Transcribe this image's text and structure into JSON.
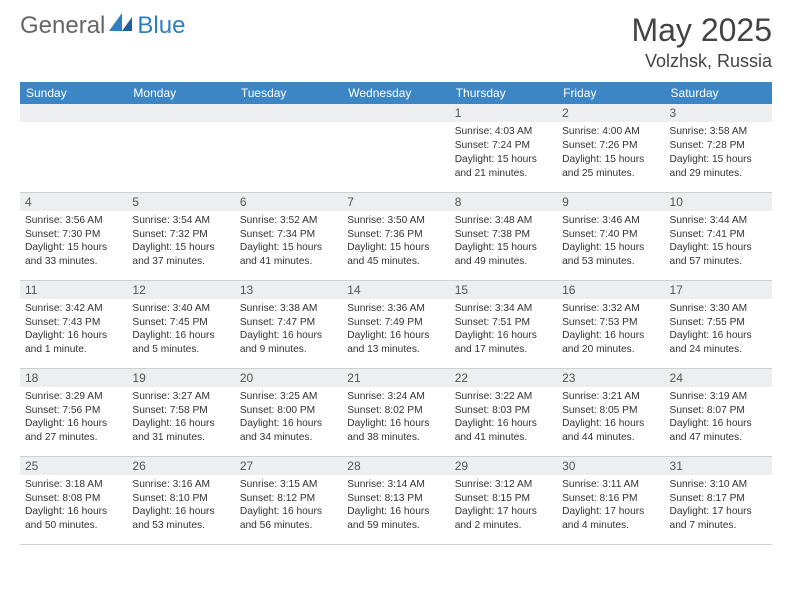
{
  "brand": {
    "part1": "General",
    "part2": "Blue"
  },
  "title": "May 2025",
  "location": "Volzhsk, Russia",
  "colors": {
    "header_bg": "#3d86c6",
    "header_text": "#ffffff",
    "daynum_bg": "#eceeef",
    "body_text": "#333333",
    "page_bg": "#ffffff",
    "brand_gray": "#666666",
    "brand_blue": "#2f7fc3",
    "row_border": "#d0d0d0"
  },
  "day_headers": [
    "Sunday",
    "Monday",
    "Tuesday",
    "Wednesday",
    "Thursday",
    "Friday",
    "Saturday"
  ],
  "weeks": [
    [
      {
        "n": "",
        "sunrise": "",
        "sunset": "",
        "daylight": ""
      },
      {
        "n": "",
        "sunrise": "",
        "sunset": "",
        "daylight": ""
      },
      {
        "n": "",
        "sunrise": "",
        "sunset": "",
        "daylight": ""
      },
      {
        "n": "",
        "sunrise": "",
        "sunset": "",
        "daylight": ""
      },
      {
        "n": "1",
        "sunrise": "Sunrise: 4:03 AM",
        "sunset": "Sunset: 7:24 PM",
        "daylight": "Daylight: 15 hours and 21 minutes."
      },
      {
        "n": "2",
        "sunrise": "Sunrise: 4:00 AM",
        "sunset": "Sunset: 7:26 PM",
        "daylight": "Daylight: 15 hours and 25 minutes."
      },
      {
        "n": "3",
        "sunrise": "Sunrise: 3:58 AM",
        "sunset": "Sunset: 7:28 PM",
        "daylight": "Daylight: 15 hours and 29 minutes."
      }
    ],
    [
      {
        "n": "4",
        "sunrise": "Sunrise: 3:56 AM",
        "sunset": "Sunset: 7:30 PM",
        "daylight": "Daylight: 15 hours and 33 minutes."
      },
      {
        "n": "5",
        "sunrise": "Sunrise: 3:54 AM",
        "sunset": "Sunset: 7:32 PM",
        "daylight": "Daylight: 15 hours and 37 minutes."
      },
      {
        "n": "6",
        "sunrise": "Sunrise: 3:52 AM",
        "sunset": "Sunset: 7:34 PM",
        "daylight": "Daylight: 15 hours and 41 minutes."
      },
      {
        "n": "7",
        "sunrise": "Sunrise: 3:50 AM",
        "sunset": "Sunset: 7:36 PM",
        "daylight": "Daylight: 15 hours and 45 minutes."
      },
      {
        "n": "8",
        "sunrise": "Sunrise: 3:48 AM",
        "sunset": "Sunset: 7:38 PM",
        "daylight": "Daylight: 15 hours and 49 minutes."
      },
      {
        "n": "9",
        "sunrise": "Sunrise: 3:46 AM",
        "sunset": "Sunset: 7:40 PM",
        "daylight": "Daylight: 15 hours and 53 minutes."
      },
      {
        "n": "10",
        "sunrise": "Sunrise: 3:44 AM",
        "sunset": "Sunset: 7:41 PM",
        "daylight": "Daylight: 15 hours and 57 minutes."
      }
    ],
    [
      {
        "n": "11",
        "sunrise": "Sunrise: 3:42 AM",
        "sunset": "Sunset: 7:43 PM",
        "daylight": "Daylight: 16 hours and 1 minute."
      },
      {
        "n": "12",
        "sunrise": "Sunrise: 3:40 AM",
        "sunset": "Sunset: 7:45 PM",
        "daylight": "Daylight: 16 hours and 5 minutes."
      },
      {
        "n": "13",
        "sunrise": "Sunrise: 3:38 AM",
        "sunset": "Sunset: 7:47 PM",
        "daylight": "Daylight: 16 hours and 9 minutes."
      },
      {
        "n": "14",
        "sunrise": "Sunrise: 3:36 AM",
        "sunset": "Sunset: 7:49 PM",
        "daylight": "Daylight: 16 hours and 13 minutes."
      },
      {
        "n": "15",
        "sunrise": "Sunrise: 3:34 AM",
        "sunset": "Sunset: 7:51 PM",
        "daylight": "Daylight: 16 hours and 17 minutes."
      },
      {
        "n": "16",
        "sunrise": "Sunrise: 3:32 AM",
        "sunset": "Sunset: 7:53 PM",
        "daylight": "Daylight: 16 hours and 20 minutes."
      },
      {
        "n": "17",
        "sunrise": "Sunrise: 3:30 AM",
        "sunset": "Sunset: 7:55 PM",
        "daylight": "Daylight: 16 hours and 24 minutes."
      }
    ],
    [
      {
        "n": "18",
        "sunrise": "Sunrise: 3:29 AM",
        "sunset": "Sunset: 7:56 PM",
        "daylight": "Daylight: 16 hours and 27 minutes."
      },
      {
        "n": "19",
        "sunrise": "Sunrise: 3:27 AM",
        "sunset": "Sunset: 7:58 PM",
        "daylight": "Daylight: 16 hours and 31 minutes."
      },
      {
        "n": "20",
        "sunrise": "Sunrise: 3:25 AM",
        "sunset": "Sunset: 8:00 PM",
        "daylight": "Daylight: 16 hours and 34 minutes."
      },
      {
        "n": "21",
        "sunrise": "Sunrise: 3:24 AM",
        "sunset": "Sunset: 8:02 PM",
        "daylight": "Daylight: 16 hours and 38 minutes."
      },
      {
        "n": "22",
        "sunrise": "Sunrise: 3:22 AM",
        "sunset": "Sunset: 8:03 PM",
        "daylight": "Daylight: 16 hours and 41 minutes."
      },
      {
        "n": "23",
        "sunrise": "Sunrise: 3:21 AM",
        "sunset": "Sunset: 8:05 PM",
        "daylight": "Daylight: 16 hours and 44 minutes."
      },
      {
        "n": "24",
        "sunrise": "Sunrise: 3:19 AM",
        "sunset": "Sunset: 8:07 PM",
        "daylight": "Daylight: 16 hours and 47 minutes."
      }
    ],
    [
      {
        "n": "25",
        "sunrise": "Sunrise: 3:18 AM",
        "sunset": "Sunset: 8:08 PM",
        "daylight": "Daylight: 16 hours and 50 minutes."
      },
      {
        "n": "26",
        "sunrise": "Sunrise: 3:16 AM",
        "sunset": "Sunset: 8:10 PM",
        "daylight": "Daylight: 16 hours and 53 minutes."
      },
      {
        "n": "27",
        "sunrise": "Sunrise: 3:15 AM",
        "sunset": "Sunset: 8:12 PM",
        "daylight": "Daylight: 16 hours and 56 minutes."
      },
      {
        "n": "28",
        "sunrise": "Sunrise: 3:14 AM",
        "sunset": "Sunset: 8:13 PM",
        "daylight": "Daylight: 16 hours and 59 minutes."
      },
      {
        "n": "29",
        "sunrise": "Sunrise: 3:12 AM",
        "sunset": "Sunset: 8:15 PM",
        "daylight": "Daylight: 17 hours and 2 minutes."
      },
      {
        "n": "30",
        "sunrise": "Sunrise: 3:11 AM",
        "sunset": "Sunset: 8:16 PM",
        "daylight": "Daylight: 17 hours and 4 minutes."
      },
      {
        "n": "31",
        "sunrise": "Sunrise: 3:10 AM",
        "sunset": "Sunset: 8:17 PM",
        "daylight": "Daylight: 17 hours and 7 minutes."
      }
    ]
  ]
}
